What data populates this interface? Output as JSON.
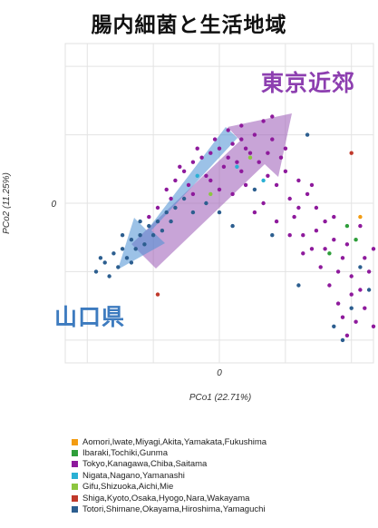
{
  "title": "腸内細菌と生活地域",
  "annotations": {
    "tokyo_area": "東京近郊",
    "yamaguchi": "山口県"
  },
  "chart_data": {
    "type": "scatter",
    "xlabel": "PCo1 (22.71%)",
    "ylabel": "PCo2 (11.25%)",
    "xlim": [
      -0.35,
      0.35
    ],
    "ylim": [
      -0.35,
      0.35
    ],
    "x_ticks": [
      {
        "value": 0,
        "label": "0"
      }
    ],
    "y_ticks": [
      {
        "value": 0,
        "label": "0"
      }
    ],
    "grid": true,
    "legend_position": "bottom",
    "series": [
      {
        "name": "Aomori,Iwate,Miyagi,Akita,Yamakata,Fukushima",
        "color": "#f39c12",
        "points": [
          [
            0.32,
            -0.03
          ]
        ]
      },
      {
        "name": "Ibaraki,Tochiki,Gunma",
        "color": "#2e9e3a",
        "points": [
          [
            0.25,
            -0.11
          ],
          [
            0.31,
            -0.08
          ],
          [
            0.29,
            -0.05
          ]
        ]
      },
      {
        "name": "Tokyo,Kanagawa,Chiba,Saitama",
        "color": "#8e1a9c",
        "points": [
          [
            0.1,
            0.18
          ],
          [
            0.08,
            0.15
          ],
          [
            0.05,
            0.14
          ],
          [
            0.03,
            0.13
          ],
          [
            0.0,
            0.12
          ],
          [
            -0.02,
            0.11
          ],
          [
            -0.04,
            0.1
          ],
          [
            -0.06,
            0.09
          ],
          [
            -0.08,
            0.07
          ],
          [
            -0.1,
            0.05
          ],
          [
            -0.12,
            0.03
          ],
          [
            0.02,
            0.16
          ],
          [
            0.05,
            0.17
          ],
          [
            -0.01,
            0.14
          ],
          [
            -0.05,
            0.12
          ],
          [
            -0.09,
            0.08
          ],
          [
            0.12,
            0.14
          ],
          [
            0.14,
            0.1
          ],
          [
            0.15,
            0.07
          ],
          [
            0.18,
            0.05
          ],
          [
            0.2,
            0.02
          ],
          [
            0.22,
            -0.01
          ],
          [
            0.24,
            -0.04
          ],
          [
            0.26,
            -0.08
          ],
          [
            0.28,
            -0.12
          ],
          [
            0.3,
            -0.16
          ],
          [
            0.32,
            -0.19
          ],
          [
            0.33,
            -0.23
          ],
          [
            0.31,
            -0.26
          ],
          [
            0.29,
            -0.29
          ],
          [
            0.27,
            -0.22
          ],
          [
            0.25,
            -0.18
          ],
          [
            0.23,
            -0.14
          ],
          [
            0.21,
            -0.1
          ],
          [
            0.19,
            -0.07
          ],
          [
            0.17,
            -0.03
          ],
          [
            0.16,
            0.01
          ],
          [
            0.13,
            0.04
          ],
          [
            0.11,
            0.06
          ],
          [
            0.09,
            0.09
          ],
          [
            0.07,
            0.11
          ],
          [
            0.04,
            0.09
          ],
          [
            0.01,
            0.08
          ],
          [
            -0.03,
            0.06
          ],
          [
            -0.07,
            0.04
          ],
          [
            -0.11,
            0.01
          ],
          [
            -0.14,
            -0.01
          ],
          [
            0.06,
            0.04
          ],
          [
            0.1,
            0.0
          ],
          [
            0.13,
            -0.04
          ],
          [
            0.16,
            -0.07
          ],
          [
            0.19,
            -0.11
          ],
          [
            0.08,
            -0.02
          ],
          [
            0.03,
            0.02
          ],
          [
            -0.02,
            0.05
          ],
          [
            0.12,
            0.19
          ],
          [
            0.02,
            0.1
          ],
          [
            0.06,
            0.12
          ],
          [
            0.35,
            -0.1
          ],
          [
            0.34,
            -0.15
          ],
          [
            0.3,
            -0.2
          ],
          [
            0.28,
            -0.25
          ],
          [
            0.35,
            -0.27
          ],
          [
            0.26,
            -0.03
          ],
          [
            0.21,
            0.04
          ],
          [
            0.15,
            0.12
          ],
          [
            -0.06,
            0.02
          ],
          [
            0.0,
            0.03
          ],
          [
            0.18,
            -0.01
          ],
          [
            0.22,
            -0.06
          ],
          [
            0.24,
            -0.1
          ],
          [
            0.27,
            -0.15
          ],
          [
            0.32,
            -0.05
          ],
          [
            0.33,
            -0.12
          ],
          [
            0.29,
            -0.09
          ],
          [
            0.11,
            0.11
          ],
          [
            -0.16,
            -0.03
          ],
          [
            0.05,
            0.07
          ]
        ]
      },
      {
        "name": "Nigata,Nagano,Yamanashi",
        "color": "#2ab0d4",
        "points": [
          [
            -0.05,
            0.06
          ],
          [
            0.04,
            0.08
          ],
          [
            0.1,
            0.05
          ]
        ]
      },
      {
        "name": "Gifu,Shizuoka,Aichi,Mie",
        "color": "#8cc63f",
        "points": [
          [
            -0.02,
            0.02
          ],
          [
            0.07,
            0.1
          ]
        ]
      },
      {
        "name": "Shiga,Kyoto,Osaka,Hyogo,Nara,Wakayama",
        "color": "#c0392b",
        "points": [
          [
            0.3,
            0.11
          ],
          [
            -0.14,
            -0.2
          ]
        ]
      },
      {
        "name": "Totori,Shimane,Okayama,Hiroshima,Yamaguchi",
        "color": "#2c5e8f",
        "points": [
          [
            -0.28,
            -0.15
          ],
          [
            -0.26,
            -0.13
          ],
          [
            -0.24,
            -0.11
          ],
          [
            -0.22,
            -0.1
          ],
          [
            -0.2,
            -0.08
          ],
          [
            -0.18,
            -0.07
          ],
          [
            -0.16,
            -0.05
          ],
          [
            -0.14,
            -0.04
          ],
          [
            -0.12,
            -0.02
          ],
          [
            -0.1,
            -0.01
          ],
          [
            -0.25,
            -0.16
          ],
          [
            -0.23,
            -0.14
          ],
          [
            -0.21,
            -0.12
          ],
          [
            -0.19,
            -0.1
          ],
          [
            -0.17,
            -0.09
          ],
          [
            -0.15,
            -0.07
          ],
          [
            -0.13,
            -0.06
          ],
          [
            -0.11,
            -0.04
          ],
          [
            -0.27,
            -0.12
          ],
          [
            -0.22,
            -0.07
          ],
          [
            -0.18,
            -0.04
          ],
          [
            -0.08,
            0.01
          ],
          [
            -0.06,
            -0.02
          ],
          [
            -0.03,
            0.0
          ],
          [
            0.0,
            -0.02
          ],
          [
            0.03,
            -0.05
          ],
          [
            0.12,
            -0.07
          ],
          [
            0.18,
            -0.18
          ],
          [
            0.28,
            -0.3
          ],
          [
            0.3,
            -0.23
          ],
          [
            0.32,
            -0.14
          ],
          [
            0.34,
            -0.19
          ],
          [
            0.26,
            -0.27
          ],
          [
            0.2,
            0.15
          ],
          [
            0.08,
            0.03
          ],
          [
            -0.2,
            -0.13
          ]
        ]
      }
    ]
  }
}
